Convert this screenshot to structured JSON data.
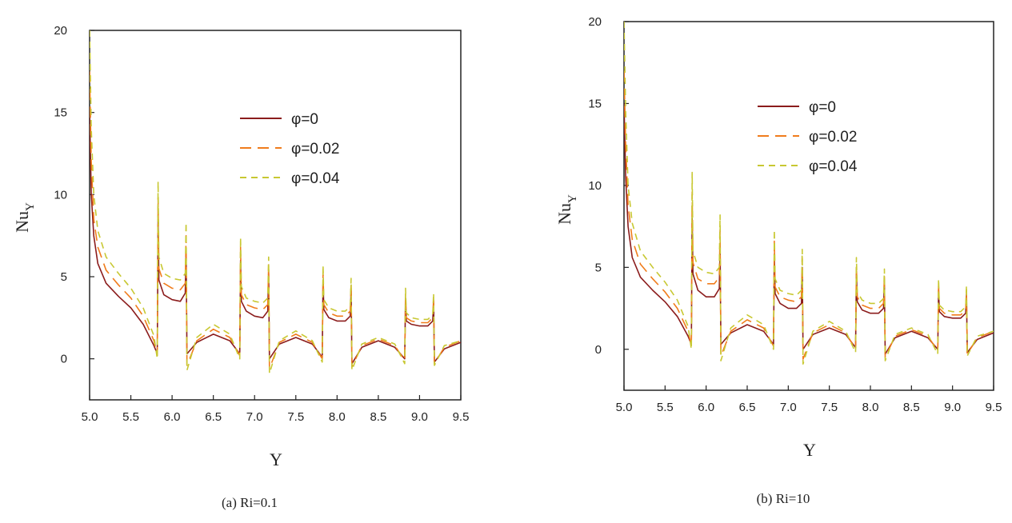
{
  "colors": {
    "phi0": "#8b1c1c",
    "phi002": "#f07c1c",
    "phi004": "#c8c832",
    "axis": "#222222"
  },
  "chart_data": [
    {
      "type": "line",
      "caption": "(a) Ri=0.1",
      "xlabel": "Y",
      "ylabel": "Nu",
      "ylabel_sub": "Y",
      "xlim": [
        5.0,
        9.5
      ],
      "ylim": [
        -2.5,
        20
      ],
      "xticks": [
        "5.0",
        "5.5",
        "6.0",
        "6.5",
        "7.0",
        "7.5",
        "8.0",
        "8.5",
        "9.0",
        "9.5"
      ],
      "yticks": [
        "0",
        "5",
        "10",
        "15",
        "20"
      ],
      "legend_position": "top-right",
      "series": [
        {
          "name": "φ=0",
          "style": "solid",
          "x": [
            5.0,
            5.02,
            5.05,
            5.1,
            5.2,
            5.35,
            5.5,
            5.65,
            5.78,
            5.82,
            5.83,
            5.84,
            5.9,
            6.0,
            6.1,
            6.16,
            6.17,
            6.18,
            6.3,
            6.5,
            6.7,
            6.82,
            6.83,
            6.84,
            6.9,
            7.0,
            7.1,
            7.16,
            7.17,
            7.18,
            7.3,
            7.5,
            7.7,
            7.82,
            7.83,
            7.84,
            7.9,
            8.0,
            8.1,
            8.16,
            8.17,
            8.18,
            8.3,
            8.5,
            8.7,
            8.82,
            8.83,
            8.84,
            8.9,
            9.0,
            9.1,
            9.16,
            9.17,
            9.18,
            9.3,
            9.5
          ],
          "y": [
            15.0,
            10.0,
            7.5,
            5.8,
            4.6,
            3.8,
            3.1,
            2.1,
            0.8,
            0.3,
            8.5,
            4.8,
            3.9,
            3.6,
            3.5,
            4.0,
            6.5,
            0.3,
            1.0,
            1.5,
            1.1,
            0.3,
            6.0,
            3.5,
            2.9,
            2.6,
            2.5,
            2.9,
            5.2,
            0.0,
            0.9,
            1.3,
            0.9,
            0.1,
            4.8,
            3.0,
            2.5,
            2.3,
            2.3,
            2.6,
            4.2,
            -0.3,
            0.7,
            1.1,
            0.7,
            0.0,
            3.7,
            2.3,
            2.1,
            2.0,
            2.0,
            2.3,
            3.5,
            -0.2,
            0.6,
            1.0
          ]
        },
        {
          "name": "φ=0.02",
          "style": "longdash",
          "x": [
            5.0,
            5.02,
            5.05,
            5.1,
            5.2,
            5.35,
            5.5,
            5.65,
            5.78,
            5.82,
            5.83,
            5.84,
            5.9,
            6.0,
            6.1,
            6.16,
            6.17,
            6.18,
            6.3,
            6.5,
            6.7,
            6.82,
            6.83,
            6.84,
            6.9,
            7.0,
            7.1,
            7.16,
            7.17,
            7.18,
            7.3,
            7.5,
            7.7,
            7.82,
            7.83,
            7.84,
            7.9,
            8.0,
            8.1,
            8.16,
            8.17,
            8.18,
            8.3,
            8.5,
            8.7,
            8.82,
            8.83,
            8.84,
            8.9,
            9.0,
            9.1,
            9.16,
            9.17,
            9.18,
            9.3,
            9.5
          ],
          "y": [
            17.5,
            12.0,
            8.5,
            6.8,
            5.4,
            4.5,
            3.7,
            2.6,
            1.1,
            0.2,
            9.8,
            5.5,
            4.6,
            4.3,
            4.2,
            4.6,
            7.5,
            -0.4,
            1.1,
            1.8,
            1.3,
            0.2,
            6.8,
            3.9,
            3.3,
            3.1,
            3.0,
            3.3,
            5.8,
            -0.6,
            1.0,
            1.5,
            1.0,
            0.0,
            5.3,
            3.3,
            2.8,
            2.6,
            2.6,
            2.9,
            4.6,
            -0.5,
            0.8,
            1.2,
            0.8,
            -0.1,
            4.0,
            2.5,
            2.3,
            2.2,
            2.2,
            2.5,
            3.7,
            -0.3,
            0.7,
            1.1
          ]
        },
        {
          "name": "φ=0.04",
          "style": "dash",
          "x": [
            5.0,
            5.02,
            5.05,
            5.1,
            5.2,
            5.35,
            5.5,
            5.65,
            5.78,
            5.82,
            5.83,
            5.84,
            5.9,
            6.0,
            6.1,
            6.16,
            6.17,
            6.18,
            6.3,
            6.5,
            6.7,
            6.82,
            6.83,
            6.84,
            6.9,
            7.0,
            7.1,
            7.16,
            7.17,
            7.18,
            7.3,
            7.5,
            7.7,
            7.82,
            7.83,
            7.84,
            7.9,
            8.0,
            8.1,
            8.16,
            8.17,
            8.18,
            8.3,
            8.5,
            8.7,
            8.82,
            8.83,
            8.84,
            8.9,
            9.0,
            9.1,
            9.16,
            9.17,
            9.18,
            9.3,
            9.5
          ],
          "y": [
            20.0,
            14.0,
            10.0,
            7.8,
            6.2,
            5.2,
            4.3,
            3.1,
            1.4,
            0.0,
            10.8,
            6.2,
            5.2,
            4.9,
            4.8,
            5.2,
            8.3,
            -0.7,
            1.3,
            2.1,
            1.5,
            0.0,
            7.4,
            4.4,
            3.7,
            3.5,
            3.4,
            3.7,
            6.2,
            -0.9,
            1.1,
            1.7,
            1.1,
            -0.2,
            5.7,
            3.6,
            3.1,
            2.9,
            2.9,
            3.2,
            4.9,
            -0.7,
            0.9,
            1.3,
            0.9,
            -0.3,
            4.3,
            2.8,
            2.5,
            2.4,
            2.4,
            2.7,
            4.0,
            -0.4,
            0.8,
            1.1
          ]
        }
      ]
    },
    {
      "type": "line",
      "caption": "(b) Ri=10",
      "xlabel": "Y",
      "ylabel": "Nu",
      "ylabel_sub": "Y",
      "xlim": [
        5.0,
        9.5
      ],
      "ylim": [
        -2.5,
        20
      ],
      "xticks": [
        "5.0",
        "5.5",
        "6.0",
        "6.5",
        "7.0",
        "7.5",
        "8.0",
        "8.5",
        "9.0",
        "9.5"
      ],
      "yticks": [
        "0",
        "5",
        "10",
        "15",
        "20"
      ],
      "legend_position": "top-right",
      "series": [
        {
          "name": "φ=0",
          "style": "solid",
          "x": [
            5.0,
            5.02,
            5.05,
            5.1,
            5.2,
            5.35,
            5.5,
            5.65,
            5.78,
            5.82,
            5.83,
            5.84,
            5.9,
            6.0,
            6.1,
            6.16,
            6.17,
            6.18,
            6.3,
            6.5,
            6.7,
            6.82,
            6.83,
            6.84,
            6.9,
            7.0,
            7.1,
            7.16,
            7.17,
            7.18,
            7.3,
            7.5,
            7.7,
            7.82,
            7.83,
            7.84,
            7.9,
            8.0,
            8.1,
            8.16,
            8.17,
            8.18,
            8.3,
            8.5,
            8.7,
            8.82,
            8.83,
            8.84,
            8.9,
            9.0,
            9.1,
            9.16,
            9.17,
            9.18,
            9.3,
            9.5
          ],
          "y": [
            15.0,
            10.5,
            7.5,
            5.6,
            4.4,
            3.6,
            2.9,
            2.0,
            0.8,
            0.3,
            8.0,
            4.6,
            3.6,
            3.2,
            3.2,
            3.7,
            6.3,
            0.3,
            1.0,
            1.5,
            1.1,
            0.3,
            5.8,
            3.4,
            2.8,
            2.5,
            2.5,
            2.8,
            5.0,
            0.0,
            0.9,
            1.3,
            0.9,
            0.1,
            4.6,
            2.9,
            2.4,
            2.2,
            2.2,
            2.5,
            4.0,
            -0.3,
            0.7,
            1.1,
            0.7,
            0.0,
            3.6,
            2.3,
            2.0,
            1.9,
            1.9,
            2.2,
            3.4,
            -0.2,
            0.6,
            1.0
          ]
        },
        {
          "name": "φ=0.02",
          "style": "longdash",
          "x": [
            5.0,
            5.02,
            5.05,
            5.1,
            5.2,
            5.35,
            5.5,
            5.65,
            5.78,
            5.82,
            5.83,
            5.84,
            5.9,
            6.0,
            6.1,
            6.16,
            6.17,
            6.18,
            6.3,
            6.5,
            6.7,
            6.82,
            6.83,
            6.84,
            6.9,
            7.0,
            7.1,
            7.16,
            7.17,
            7.18,
            7.3,
            7.5,
            7.7,
            7.82,
            7.83,
            7.84,
            7.9,
            8.0,
            8.1,
            8.16,
            8.17,
            8.18,
            8.3,
            8.5,
            8.7,
            8.82,
            8.83,
            8.84,
            8.9,
            9.0,
            9.1,
            9.16,
            9.17,
            9.18,
            9.3,
            9.5
          ],
          "y": [
            17.0,
            12.5,
            8.8,
            6.7,
            5.2,
            4.3,
            3.5,
            2.5,
            1.1,
            0.2,
            9.6,
            5.3,
            4.3,
            4.0,
            4.0,
            4.4,
            7.3,
            -0.4,
            1.1,
            1.8,
            1.3,
            0.2,
            6.6,
            3.8,
            3.2,
            3.0,
            2.9,
            3.2,
            5.6,
            -0.6,
            1.0,
            1.5,
            1.0,
            0.0,
            5.1,
            3.2,
            2.7,
            2.5,
            2.5,
            2.8,
            4.5,
            -0.5,
            0.8,
            1.2,
            0.8,
            -0.1,
            4.0,
            2.5,
            2.2,
            2.1,
            2.1,
            2.4,
            3.6,
            -0.3,
            0.7,
            1.1
          ]
        },
        {
          "name": "φ=0.04",
          "style": "dash",
          "x": [
            5.0,
            5.02,
            5.05,
            5.1,
            5.2,
            5.35,
            5.5,
            5.65,
            5.78,
            5.82,
            5.83,
            5.84,
            5.9,
            6.0,
            6.1,
            6.16,
            6.17,
            6.18,
            6.3,
            6.5,
            6.7,
            6.82,
            6.83,
            6.84,
            6.9,
            7.0,
            7.1,
            7.16,
            7.17,
            7.18,
            7.3,
            7.5,
            7.7,
            7.82,
            7.83,
            7.84,
            7.9,
            8.0,
            8.1,
            8.16,
            8.17,
            8.18,
            8.3,
            8.5,
            8.7,
            8.82,
            8.83,
            8.84,
            8.9,
            9.0,
            9.1,
            9.16,
            9.17,
            9.18,
            9.3,
            9.5
          ],
          "y": [
            20.0,
            14.5,
            10.0,
            7.7,
            6.0,
            5.0,
            4.1,
            3.0,
            1.4,
            0.0,
            10.8,
            6.0,
            5.0,
            4.7,
            4.6,
            5.0,
            8.2,
            -0.7,
            1.3,
            2.1,
            1.5,
            0.0,
            7.3,
            4.3,
            3.6,
            3.4,
            3.3,
            3.6,
            6.1,
            -0.9,
            1.1,
            1.7,
            1.1,
            -0.2,
            5.6,
            3.5,
            3.0,
            2.8,
            2.8,
            3.1,
            4.9,
            -0.7,
            0.9,
            1.3,
            0.9,
            -0.3,
            4.3,
            2.7,
            2.4,
            2.3,
            2.3,
            2.6,
            3.9,
            -0.4,
            0.8,
            1.1
          ]
        }
      ]
    }
  ]
}
